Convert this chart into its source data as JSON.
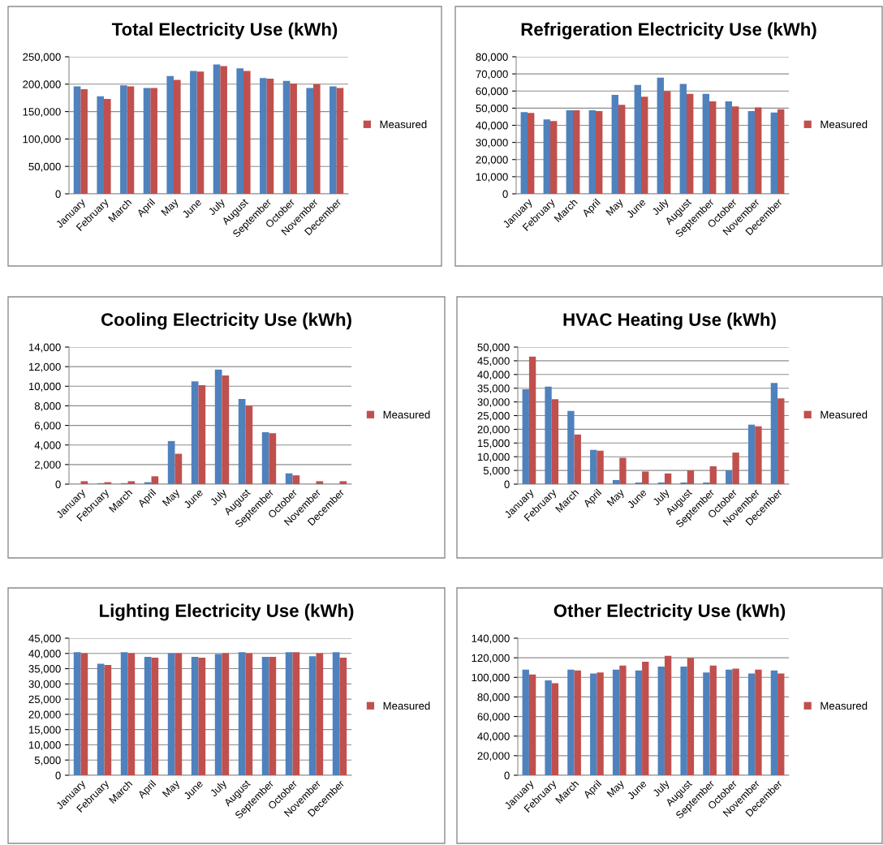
{
  "chart_data": [
    {
      "type": "bar",
      "title": "Total Electricity Use (kWh)",
      "categories": [
        "January",
        "February",
        "March",
        "April",
        "May",
        "June",
        "July",
        "August",
        "September",
        "October",
        "November",
        "December"
      ],
      "series": [
        {
          "color": "#4f81bd",
          "values": [
            196000,
            178000,
            198000,
            193000,
            215000,
            224000,
            236000,
            229000,
            211000,
            206000,
            193000,
            196000
          ]
        },
        {
          "name": "Measured",
          "color": "#c0504d",
          "values": [
            191000,
            173000,
            196000,
            193000,
            208000,
            223000,
            233000,
            224000,
            210000,
            201000,
            200000,
            193000
          ]
        }
      ],
      "ylim": [
        0,
        250000
      ],
      "yticks": [
        0,
        {
          "value": 50000,
          "label": "50,000"
        },
        {
          "value": 100000,
          "label": "100,000"
        },
        {
          "value": 150000,
          "label": "150,000"
        },
        {
          "value": 200000,
          "label": "200,000"
        },
        {
          "value": 250000,
          "label": "250,000"
        }
      ],
      "grid": "y",
      "legend": "right"
    },
    {
      "type": "bar",
      "title": "Refrigeration Electricity Use (kWh)",
      "categories": [
        "January",
        "February",
        "March",
        "April",
        "May",
        "June",
        "July",
        "August",
        "September",
        "October",
        "November",
        "December"
      ],
      "series": [
        {
          "color": "#4f81bd",
          "values": [
            47700,
            43400,
            48800,
            48800,
            57800,
            63500,
            67800,
            64100,
            58300,
            54000,
            48300,
            47400
          ]
        },
        {
          "name": "Measured",
          "color": "#c0504d",
          "values": [
            47200,
            42500,
            48800,
            48300,
            52000,
            56700,
            60000,
            58300,
            54000,
            51000,
            50400,
            49300
          ]
        }
      ],
      "ylim": [
        0,
        80000
      ],
      "yticks": [
        0,
        {
          "value": 10000,
          "label": "10,000"
        },
        {
          "value": 20000,
          "label": "20,000"
        },
        {
          "value": 30000,
          "label": "30,000"
        },
        {
          "value": 40000,
          "label": "40,000"
        },
        {
          "value": 50000,
          "label": "50,000"
        },
        {
          "value": 60000,
          "label": "60,000"
        },
        {
          "value": 70000,
          "label": "70,000"
        },
        {
          "value": 80000,
          "label": "80,000"
        }
      ],
      "grid": "y",
      "legend": "right"
    },
    {
      "type": "bar",
      "title": "Cooling Electricity Use (kWh)",
      "categories": [
        "January",
        "February",
        "March",
        "April",
        "May",
        "June",
        "July",
        "August",
        "September",
        "October",
        "November",
        "December"
      ],
      "series": [
        {
          "color": "#4f81bd",
          "values": [
            null,
            100,
            100,
            200,
            4400,
            10500,
            11700,
            8700,
            5300,
            1100,
            null,
            null
          ]
        },
        {
          "name": "Measured",
          "color": "#c0504d",
          "values": [
            300,
            200,
            300,
            800,
            3100,
            10100,
            11100,
            8000,
            5200,
            900,
            300,
            300
          ]
        }
      ],
      "ylim": [
        0,
        14000
      ],
      "yticks": [
        0,
        {
          "value": 2000,
          "label": "2,000"
        },
        {
          "value": 4000,
          "label": "4,000"
        },
        {
          "value": 6000,
          "label": "6,000"
        },
        {
          "value": 8000,
          "label": "8,000"
        },
        {
          "value": 10000,
          "label": "10,000"
        },
        {
          "value": 12000,
          "label": "12,000"
        },
        {
          "value": 14000,
          "label": "14,000"
        }
      ],
      "grid": "y",
      "legend": "right"
    },
    {
      "type": "bar",
      "title": "HVAC Heating Use (kWh)",
      "categories": [
        "January",
        "February",
        "March",
        "April",
        "May",
        "June",
        "July",
        "August",
        "September",
        "October",
        "November",
        "December"
      ],
      "series": [
        {
          "color": "#4f81bd",
          "values": [
            34600,
            35600,
            26700,
            12500,
            1500,
            600,
            600,
            600,
            600,
            5000,
            21700,
            36900
          ]
        },
        {
          "name": "Measured",
          "color": "#c0504d",
          "values": [
            46500,
            31000,
            18100,
            12200,
            9600,
            4600,
            3900,
            5000,
            6500,
            11500,
            21100,
            31300
          ]
        }
      ],
      "ylim": [
        0,
        50000
      ],
      "yticks": [
        0,
        {
          "value": 5000,
          "label": "5,000"
        },
        {
          "value": 10000,
          "label": "10,000"
        },
        {
          "value": 15000,
          "label": "15,000"
        },
        {
          "value": 20000,
          "label": "20,000"
        },
        {
          "value": 25000,
          "label": "25,000"
        },
        {
          "value": 30000,
          "label": "30,000"
        },
        {
          "value": 35000,
          "label": "35,000"
        },
        {
          "value": 40000,
          "label": "40,000"
        },
        {
          "value": 45000,
          "label": "45,000"
        },
        {
          "value": 50000,
          "label": "50,000"
        }
      ],
      "grid": "y",
      "legend": "right"
    },
    {
      "type": "bar",
      "title": "Lighting Electricity Use (kWh)",
      "categories": [
        "January",
        "February",
        "March",
        "April",
        "May",
        "June",
        "July",
        "August",
        "September",
        "October",
        "November",
        "December"
      ],
      "series": [
        {
          "color": "#4f81bd",
          "values": [
            40400,
            36600,
            40400,
            38900,
            40100,
            38900,
            39800,
            40400,
            38900,
            40400,
            39100,
            40400
          ]
        },
        {
          "name": "Measured",
          "color": "#c0504d",
          "values": [
            40100,
            36200,
            40100,
            38600,
            40100,
            38600,
            40100,
            40100,
            38900,
            40400,
            40100,
            38600
          ]
        }
      ],
      "ylim": [
        0,
        45000
      ],
      "yticks": [
        0,
        {
          "value": 5000,
          "label": "5,000"
        },
        {
          "value": 10000,
          "label": "10,000"
        },
        {
          "value": 15000,
          "label": "15,000"
        },
        {
          "value": 20000,
          "label": "20,000"
        },
        {
          "value": 25000,
          "label": "25,000"
        },
        {
          "value": 30000,
          "label": "30,000"
        },
        {
          "value": 35000,
          "label": "35,000"
        },
        {
          "value": 40000,
          "label": "40,000"
        },
        {
          "value": 45000,
          "label": "45,000"
        }
      ],
      "grid": "y",
      "legend": "right"
    },
    {
      "type": "bar",
      "title": "Other Electricity Use (kWh)",
      "categories": [
        "January",
        "February",
        "March",
        "April",
        "May",
        "June",
        "July",
        "August",
        "September",
        "October",
        "November",
        "December"
      ],
      "series": [
        {
          "color": "#4f81bd",
          "values": [
            108000,
            97000,
            108000,
            104000,
            108000,
            107000,
            111000,
            111000,
            105000,
            108000,
            104000,
            107000
          ]
        },
        {
          "name": "Measured",
          "color": "#c0504d",
          "values": [
            103000,
            94000,
            107000,
            105000,
            112000,
            116000,
            122000,
            120000,
            112000,
            109000,
            108000,
            104000
          ]
        }
      ],
      "ylim": [
        0,
        140000
      ],
      "yticks": [
        0,
        {
          "value": 20000,
          "label": "20,000"
        },
        {
          "value": 40000,
          "label": "40,000"
        },
        {
          "value": 60000,
          "label": "60,000"
        },
        {
          "value": 80000,
          "label": "80,000"
        },
        {
          "value": 100000,
          "label": "100,000"
        },
        {
          "value": 120000,
          "label": "120,000"
        },
        {
          "value": 140000,
          "label": "140,000"
        }
      ],
      "grid": "y",
      "legend": "right"
    }
  ]
}
